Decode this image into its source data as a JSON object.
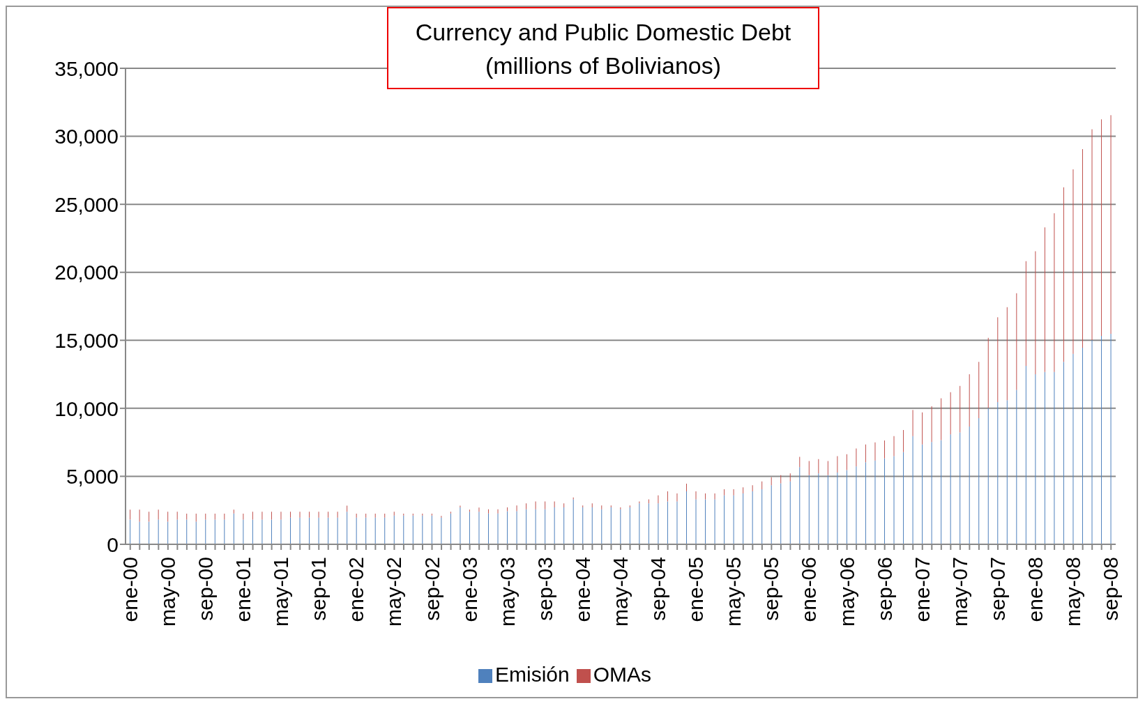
{
  "chart_data": {
    "type": "bar",
    "title": "Currency and Public Domestic Debt",
    "subtitle": "(millions of Bolivianos)",
    "categories": [
      "ene-00",
      null,
      null,
      null,
      "may-00",
      null,
      null,
      null,
      "sep-00",
      null,
      null,
      null,
      "ene-01",
      null,
      null,
      null,
      "may-01",
      null,
      null,
      null,
      "sep-01",
      null,
      null,
      null,
      "ene-02",
      null,
      null,
      null,
      "may-02",
      null,
      null,
      null,
      "sep-02",
      null,
      null,
      null,
      "ene-03",
      null,
      null,
      null,
      "may-03",
      null,
      null,
      null,
      "sep-03",
      null,
      null,
      null,
      "ene-04",
      null,
      null,
      null,
      "may-04",
      null,
      null,
      null,
      "sep-04",
      null,
      null,
      null,
      "ene-05",
      null,
      null,
      null,
      "may-05",
      null,
      null,
      null,
      "sep-05",
      null,
      null,
      null,
      "ene-06",
      null,
      null,
      null,
      "may-06",
      null,
      null,
      null,
      "sep-06",
      null,
      null,
      null,
      "ene-07",
      null,
      null,
      null,
      "may-07",
      null,
      null,
      null,
      "sep-07",
      null,
      null,
      null,
      "ene-08",
      null,
      null,
      null,
      "may-08",
      null,
      null,
      null,
      "sep-08"
    ],
    "series": [
      {
        "name": "Emisión",
        "color": "#4f81bd",
        "values": [
          1820,
          1670,
          1670,
          1820,
          1670,
          1820,
          1820,
          1670,
          1820,
          1820,
          1820,
          2270,
          1820,
          1820,
          1820,
          1820,
          1820,
          1960,
          1960,
          1960,
          1960,
          1960,
          1960,
          2400,
          1960,
          1960,
          1960,
          1960,
          2110,
          2110,
          2110,
          2110,
          2110,
          1960,
          2270,
          2710,
          2400,
          2400,
          2270,
          2270,
          2430,
          2430,
          2570,
          2570,
          2570,
          2720,
          2720,
          3310,
          2720,
          2720,
          2570,
          2720,
          2570,
          2720,
          3010,
          3010,
          3010,
          3150,
          3150,
          3890,
          3310,
          3310,
          3310,
          3600,
          3600,
          3740,
          3890,
          4050,
          4340,
          4480,
          4630,
          5670,
          5080,
          5220,
          5080,
          5280,
          5460,
          5730,
          6030,
          6160,
          6320,
          6480,
          6780,
          7950,
          7340,
          7520,
          7660,
          8090,
          8230,
          8660,
          9270,
          10020,
          10450,
          10600,
          11350,
          13120,
          12510,
          12670,
          12670,
          13410,
          14000,
          14450,
          15020,
          15320,
          15480
        ]
      },
      {
        "name": "OMAs",
        "color": "#c0504d",
        "values": [
          730,
          880,
          730,
          730,
          730,
          580,
          430,
          580,
          430,
          430,
          430,
          280,
          430,
          580,
          580,
          580,
          580,
          440,
          440,
          440,
          440,
          440,
          440,
          440,
          290,
          290,
          290,
          290,
          290,
          140,
          140,
          140,
          140,
          130,
          130,
          130,
          150,
          300,
          300,
          300,
          290,
          430,
          440,
          580,
          580,
          430,
          290,
          130,
          140,
          290,
          290,
          140,
          150,
          140,
          140,
          300,
          590,
          740,
          590,
          570,
          580,
          430,
          430,
          450,
          450,
          450,
          450,
          580,
          590,
          600,
          590,
          760,
          1040,
          1040,
          1040,
          1200,
          1160,
          1320,
          1310,
          1340,
          1320,
          1470,
          1620,
          1930,
          2360,
          2630,
          3080,
          3100,
          3410,
          3850,
          4140,
          5160,
          6240,
          6840,
          7110,
          7700,
          9040,
          10630,
          11670,
          12840,
          13570,
          14600,
          15500,
          15930,
          16070
        ]
      }
    ],
    "stacked": true,
    "ylim": [
      0,
      35000
    ],
    "yticks": [
      0,
      {
        "value": 5000,
        "label": "5,000"
      },
      {
        "value": 10000,
        "label": "10,000"
      },
      {
        "value": 15000,
        "label": "15,000"
      },
      {
        "value": 20000,
        "label": "20,000"
      },
      {
        "value": 25000,
        "label": "25,000"
      },
      {
        "value": 30000,
        "label": "30,000"
      },
      {
        "value": 35000,
        "label": "35,000"
      }
    ],
    "grid": "y",
    "legend": "bottom"
  }
}
